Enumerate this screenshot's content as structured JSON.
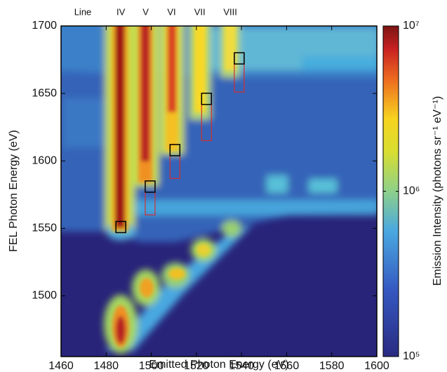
{
  "chart_data": {
    "type": "heatmap",
    "xlabel": "Emitted Photon Energy (eV)",
    "ylabel": "FEL Photon Energy (eV)",
    "xlim": [
      1460,
      1600
    ],
    "xticks": [
      1460,
      1480,
      1500,
      1520,
      1540,
      1560,
      1580,
      1600
    ],
    "ylim": [
      1455,
      1700
    ],
    "yticks": [
      1500,
      1550,
      1600,
      1650,
      1700
    ],
    "line_header": "Line",
    "lines": [
      {
        "label": "IV",
        "x": 1486.5
      },
      {
        "label": "V",
        "x": 1497.5
      },
      {
        "label": "VI",
        "x": 1509
      },
      {
        "label": "VII",
        "x": 1521.5
      },
      {
        "label": "VIII",
        "x": 1535
      }
    ],
    "boxes": [
      {
        "x": 1486.5,
        "y": 1551,
        "y_low": 1551
      },
      {
        "x": 1499.5,
        "y": 1581,
        "y_low": 1560
      },
      {
        "x": 1510.5,
        "y": 1608,
        "y_low": 1587
      },
      {
        "x": 1524.5,
        "y": 1646,
        "y_low": 1615
      },
      {
        "x": 1539,
        "y": 1676,
        "y_low": 1651
      }
    ],
    "colorbar": {
      "label": "Emission Intensity (photons sr⁻¹ eV⁻¹)",
      "scale": "log",
      "lim": [
        100000,
        10000000
      ],
      "ticks": [
        {
          "value": 100000,
          "label": "10⁵"
        },
        {
          "value": 1000000,
          "label": "10⁶"
        },
        {
          "value": 10000000,
          "label": "10⁷"
        }
      ]
    }
  }
}
